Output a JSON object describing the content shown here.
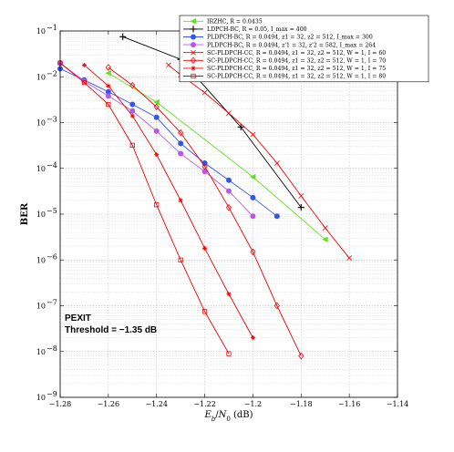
{
  "chart_data": {
    "type": "line",
    "title": "",
    "xlabel": "E_b/N_0 (dB)",
    "ylabel": "BER",
    "xlim": [
      -1.28,
      -1.14
    ],
    "ylim_log10": [
      -9,
      -1
    ],
    "yscale": "log",
    "grid": true,
    "legend_position": "top-right",
    "x_ticks": [
      "−1.28",
      "−1.26",
      "−1.24",
      "−1.22",
      "−1.2",
      "−1.18",
      "−1.16",
      "−1.14"
    ],
    "y_ticks": [
      {
        "base": "10",
        "exp": "−1",
        "value": -1
      },
      {
        "base": "10",
        "exp": "−2",
        "value": -2
      },
      {
        "base": "10",
        "exp": "−3",
        "value": -3
      },
      {
        "base": "10",
        "exp": "−4",
        "value": -4
      },
      {
        "base": "10",
        "exp": "−5",
        "value": -5
      },
      {
        "base": "10",
        "exp": "−6",
        "value": -6
      },
      {
        "base": "10",
        "exp": "−7",
        "value": -7
      },
      {
        "base": "10",
        "exp": "−8",
        "value": -8
      },
      {
        "base": "10",
        "exp": "−9",
        "value": -9
      }
    ],
    "annotations": [
      "PEXIT",
      "Threshold = −1.35 dB"
    ],
    "series": [
      {
        "name": "IRZHC, R = 0.0435",
        "color": "#66dd22",
        "marker": "triangle-left",
        "x": [
          -1.26,
          -1.24,
          -1.2,
          -1.17
        ],
        "y": [
          0.012,
          0.0028,
          6.5e-05,
          2.8e-06
        ]
      },
      {
        "name": "LDPCH-BC, R = 0.05, I_max = 400",
        "color": "#000000",
        "marker": "plus",
        "x": [
          -1.254,
          -1.23,
          -1.205,
          -1.18
        ],
        "y": [
          0.075,
          0.024,
          0.0008,
          1.4e-05
        ]
      },
      {
        "name": "PLDPCH-BC, R = 0.0494, z1 = 32, z2 = 512, I_max = 300",
        "color": "#3355ee",
        "marker": "circle",
        "x": [
          -1.28,
          -1.27,
          -1.26,
          -1.25,
          -1.24,
          -1.23,
          -1.22,
          -1.21,
          -1.2,
          -1.19
        ],
        "y": [
          0.015,
          0.0085,
          0.0047,
          0.0025,
          0.0013,
          0.00035,
          0.00013,
          5.5e-05,
          2.3e-05,
          9e-06
        ]
      },
      {
        "name": "PLDPCH-BC, R = 0.0494, z'1 = 32, z'2 = 582, I_max = 264",
        "color": "#bb55ee",
        "marker": "circle",
        "x": [
          -1.28,
          -1.27,
          -1.26,
          -1.25,
          -1.24,
          -1.23,
          -1.22,
          -1.21,
          -1.2
        ],
        "y": [
          0.02,
          0.008,
          0.0038,
          0.0018,
          0.00065,
          0.00021,
          8.5e-05,
          3.2e-05,
          9e-06
        ]
      },
      {
        "name": "SC-PLDPCH-CC, R = 0.0494, z1 = 32, z2 = 512, W = 1, I = 60",
        "color": "#ee0000",
        "marker": "x",
        "x": [
          -1.235,
          -1.23,
          -1.22,
          -1.21,
          -1.2,
          -1.19,
          -1.18,
          -1.17,
          -1.16
        ],
        "y": [
          0.018,
          0.011,
          0.0045,
          0.0016,
          0.00055,
          0.00013,
          2.5e-05,
          5e-06,
          1.1e-06
        ]
      },
      {
        "name": "SC-PLDPCH-CC, R = 0.0494, z1 = 32, z2 = 512, W = 1, I = 70",
        "color": "#ee0000",
        "marker": "diamond",
        "x": [
          -1.26,
          -1.25,
          -1.24,
          -1.23,
          -1.22,
          -1.21,
          -1.2,
          -1.19,
          -1.18
        ],
        "y": [
          0.016,
          0.0065,
          0.0022,
          0.0006,
          0.00011,
          1.4e-05,
          1.5e-06,
          1e-07,
          8e-09
        ]
      },
      {
        "name": "SC-PLDPCH-CC, R = 0.0494, z1 = 32, z2 = 512, W = 1, I = 75",
        "color": "#ee0000",
        "marker": "asterisk",
        "x": [
          -1.27,
          -1.26,
          -1.25,
          -1.24,
          -1.23,
          -1.22,
          -1.21,
          -1.2
        ],
        "y": [
          0.018,
          0.0063,
          0.0014,
          0.0002,
          2e-05,
          1.8e-06,
          1.8e-07,
          2e-08
        ]
      },
      {
        "name": "SC-PLDPCH-CC, R = 0.0494, z1 = 32, z2 = 512, W = 1, I = 80",
        "color": "#ee0000",
        "marker": "square",
        "x": [
          -1.28,
          -1.27,
          -1.26,
          -1.25,
          -1.24,
          -1.23,
          -1.22,
          -1.21
        ],
        "y": [
          0.02,
          0.0075,
          0.0025,
          0.00032,
          1.6e-05,
          1e-06,
          7.5e-08,
          9e-09
        ]
      }
    ]
  }
}
